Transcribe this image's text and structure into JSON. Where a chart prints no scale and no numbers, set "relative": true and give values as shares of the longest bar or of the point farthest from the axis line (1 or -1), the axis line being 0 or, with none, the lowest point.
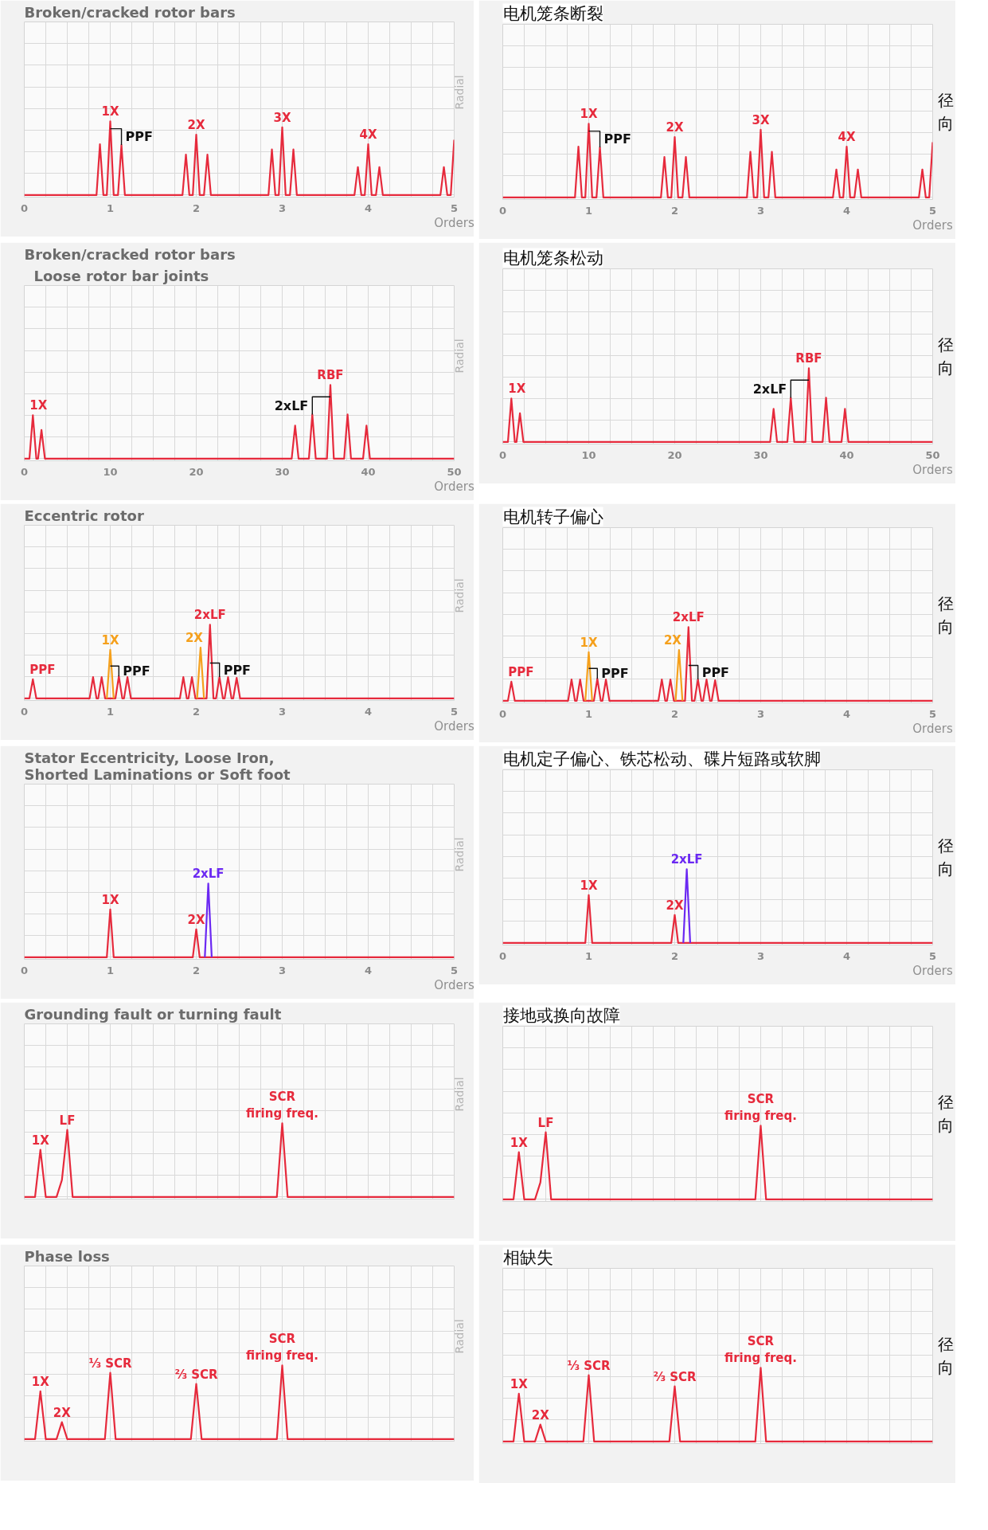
{
  "chart_data": [
    {
      "type": "line",
      "title": "Broken/cracked rotor bars",
      "xlabel": "Orders",
      "ylabel": "Radial",
      "relative": true,
      "grid": true,
      "xlim": [
        0,
        5
      ],
      "xticks": [
        0,
        {
          "value": 0.25,
          "label": null
        },
        {
          "value": 0.5,
          "label": null
        },
        {
          "value": 0.75,
          "label": null
        },
        1,
        {
          "value": 1.25,
          "label": null
        },
        {
          "value": 1.5,
          "label": null
        },
        {
          "value": 1.75,
          "label": null
        },
        2,
        {
          "value": 2.25,
          "label": null
        },
        {
          "value": 2.5,
          "label": null
        },
        {
          "value": 2.75,
          "label": null
        },
        3,
        {
          "value": 3.25,
          "label": null
        },
        {
          "value": 3.5,
          "label": null
        },
        {
          "value": 3.75,
          "label": null
        },
        4,
        {
          "value": 4.25,
          "label": null
        },
        {
          "value": 4.5,
          "label": null
        },
        {
          "value": 4.75,
          "label": null
        },
        5
      ],
      "series": [
        {
          "color": "#e62a3c",
          "x": [
            0,
            0.84,
            0.88,
            0.92,
            0.96,
            1,
            1.04,
            1.09,
            1.13,
            1.17,
            1.84,
            1.88,
            1.92,
            1.96,
            2,
            2.04,
            2.09,
            2.13,
            2.17,
            2.84,
            2.88,
            2.92,
            2.96,
            3,
            3.04,
            3.09,
            3.13,
            3.17,
            3.84,
            3.88,
            3.92,
            3.96,
            4,
            4.04,
            4.09,
            4.13,
            4.17,
            4.84,
            4.88,
            4.92,
            4.96,
            5
          ],
          "values": [
            0,
            0,
            0.69,
            0,
            0,
            1,
            0,
            0,
            0.68,
            0,
            0,
            0.55,
            0,
            0,
            0.82,
            0,
            0,
            0.55,
            0,
            0,
            0.62,
            0,
            0,
            0.92,
            0,
            0,
            0.62,
            0,
            0,
            0.38,
            0,
            0,
            0.69,
            0,
            0,
            0.38,
            0,
            0,
            0.38,
            0,
            0,
            0.75
          ]
        },
        {
          "name": "PPF",
          "color": "#111111",
          "x": [
            1.13,
            1.13,
            1
          ],
          "values": [
            0.68,
            0.9,
            0.9
          ]
        }
      ],
      "annotations": [
        {
          "text": "1X",
          "x": 1,
          "y": 1
        },
        {
          "text": "2X",
          "x": 2,
          "y": 0.82
        },
        {
          "text": "3X",
          "x": 3,
          "y": 0.92
        },
        {
          "text": "4X",
          "x": 4,
          "y": 0.69
        }
      ]
    },
    {
      "type": "line",
      "title": "电机笼条断裂",
      "xlabel": "Orders",
      "ylabel": "径向",
      "relative": true,
      "grid": true,
      "xlim": [
        0,
        5
      ],
      "xticks": [
        0,
        {
          "value": 0.25,
          "label": null
        },
        {
          "value": 0.5,
          "label": null
        },
        {
          "value": 0.75,
          "label": null
        },
        1,
        {
          "value": 1.25,
          "label": null
        },
        {
          "value": 1.5,
          "label": null
        },
        {
          "value": 1.75,
          "label": null
        },
        2,
        {
          "value": 2.25,
          "label": null
        },
        {
          "value": 2.5,
          "label": null
        },
        {
          "value": 2.75,
          "label": null
        },
        3,
        {
          "value": 3.25,
          "label": null
        },
        {
          "value": 3.5,
          "label": null
        },
        {
          "value": 3.75,
          "label": null
        },
        4,
        {
          "value": 4.25,
          "label": null
        },
        {
          "value": 4.5,
          "label": null
        },
        {
          "value": 4.75,
          "label": null
        },
        5
      ],
      "series": [
        {
          "color": "#e62a3c",
          "x": [
            0,
            0.84,
            0.88,
            0.92,
            0.96,
            1,
            1.04,
            1.09,
            1.13,
            1.17,
            1.84,
            1.88,
            1.92,
            1.96,
            2,
            2.04,
            2.09,
            2.13,
            2.17,
            2.84,
            2.88,
            2.92,
            2.96,
            3,
            3.04,
            3.09,
            3.13,
            3.17,
            3.84,
            3.88,
            3.92,
            3.96,
            4,
            4.04,
            4.09,
            4.13,
            4.17,
            4.84,
            4.88,
            4.92,
            4.96,
            5
          ],
          "values": [
            0,
            0,
            0.69,
            0,
            0,
            1,
            0,
            0,
            0.68,
            0,
            0,
            0.55,
            0,
            0,
            0.82,
            0,
            0,
            0.55,
            0,
            0,
            0.62,
            0,
            0,
            0.92,
            0,
            0,
            0.62,
            0,
            0,
            0.38,
            0,
            0,
            0.69,
            0,
            0,
            0.38,
            0,
            0,
            0.38,
            0,
            0,
            0.75
          ]
        },
        {
          "name": "PPF",
          "color": "#111111",
          "x": [
            1.13,
            1.13,
            1
          ],
          "values": [
            0.68,
            0.9,
            0.9
          ]
        }
      ],
      "annotations": [
        {
          "text": "1X",
          "x": 1,
          "y": 1
        },
        {
          "text": "2X",
          "x": 2,
          "y": 0.82
        },
        {
          "text": "3X",
          "x": 3,
          "y": 0.92
        },
        {
          "text": "4X",
          "x": 4,
          "y": 0.69
        }
      ]
    },
    {
      "type": "line",
      "title": "Broken/cracked rotor bars",
      "subtitle": "Loose rotor bar joints",
      "xlabel": "Orders",
      "ylabel": "Radial",
      "relative": true,
      "grid": true,
      "xlim": [
        0,
        50
      ],
      "xticks": [
        0,
        {
          "value": 2.5,
          "label": null
        },
        {
          "value": 5,
          "label": null
        },
        {
          "value": 7.5,
          "label": null
        },
        10,
        {
          "value": 12.5,
          "label": null
        },
        {
          "value": 15,
          "label": null
        },
        {
          "value": 17.5,
          "label": null
        },
        20,
        {
          "value": 22.5,
          "label": null
        },
        {
          "value": 25,
          "label": null
        },
        {
          "value": 27.5,
          "label": null
        },
        30,
        {
          "value": 32.5,
          "label": null
        },
        {
          "value": 35,
          "label": null
        },
        {
          "value": 37.5,
          "label": null
        },
        40,
        {
          "value": 42.5,
          "label": null
        },
        {
          "value": 45,
          "label": null
        },
        {
          "value": 47.5,
          "label": null
        },
        50
      ],
      "series": [
        {
          "color": "#e62a3c",
          "x": [
            0,
            0.6,
            1,
            1.4,
            1.6,
            2,
            2.4,
            31.1,
            31.5,
            31.9,
            33.1,
            33.5,
            33.9,
            35.2,
            35.6,
            36,
            37.2,
            37.6,
            38,
            39.4,
            39.8,
            40.2,
            50
          ],
          "values": [
            0,
            0,
            0.59,
            0,
            0,
            0.39,
            0,
            0,
            0.45,
            0,
            0,
            0.6,
            0,
            0,
            1,
            0,
            0,
            0.6,
            0,
            0,
            0.45,
            0,
            0
          ]
        },
        {
          "name": "2xLF",
          "color": "#111111",
          "x": [
            33.5,
            33.5,
            35.6
          ],
          "values": [
            0.6,
            0.84,
            0.84
          ]
        }
      ],
      "annotations": [
        {
          "text": "1X",
          "x": 1,
          "y": 0.59
        },
        {
          "text": "RBF",
          "x": 35.6,
          "y": 1
        }
      ]
    },
    {
      "type": "line",
      "title": "电机笼条松动",
      "xlabel": "Orders",
      "ylabel": "径向",
      "relative": true,
      "grid": true,
      "xlim": [
        0,
        50
      ],
      "xticks": [
        0,
        {
          "value": 2.5,
          "label": null
        },
        {
          "value": 5,
          "label": null
        },
        {
          "value": 7.5,
          "label": null
        },
        10,
        {
          "value": 12.5,
          "label": null
        },
        {
          "value": 15,
          "label": null
        },
        {
          "value": 17.5,
          "label": null
        },
        20,
        {
          "value": 22.5,
          "label": null
        },
        {
          "value": 25,
          "label": null
        },
        {
          "value": 27.5,
          "label": null
        },
        30,
        {
          "value": 32.5,
          "label": null
        },
        {
          "value": 35,
          "label": null
        },
        {
          "value": 37.5,
          "label": null
        },
        40,
        {
          "value": 42.5,
          "label": null
        },
        {
          "value": 45,
          "label": null
        },
        {
          "value": 47.5,
          "label": null
        },
        50
      ],
      "series": [
        {
          "color": "#e62a3c",
          "x": [
            0,
            0.6,
            1,
            1.4,
            1.6,
            2,
            2.4,
            31.1,
            31.5,
            31.9,
            33.1,
            33.5,
            33.9,
            35.2,
            35.6,
            36,
            37.2,
            37.6,
            38,
            39.4,
            39.8,
            40.2,
            50
          ],
          "values": [
            0,
            0,
            0.59,
            0,
            0,
            0.39,
            0,
            0,
            0.45,
            0,
            0,
            0.6,
            0,
            0,
            1,
            0,
            0,
            0.6,
            0,
            0,
            0.45,
            0,
            0
          ]
        },
        {
          "name": "2xLF",
          "color": "#111111",
          "x": [
            33.5,
            33.5,
            35.6
          ],
          "values": [
            0.6,
            0.84,
            0.84
          ]
        }
      ],
      "annotations": [
        {
          "text": "1X",
          "x": 1,
          "y": 0.59
        },
        {
          "text": "RBF",
          "x": 35.6,
          "y": 1
        }
      ]
    },
    {
      "type": "line",
      "title": "Eccentric rotor",
      "xlabel": "Orders",
      "ylabel": "Radial",
      "relative": true,
      "grid": true,
      "xlim": [
        0,
        5
      ],
      "xticks": [
        0,
        {
          "value": 0.25,
          "label": null
        },
        {
          "value": 0.5,
          "label": null
        },
        {
          "value": 0.75,
          "label": null
        },
        1,
        {
          "value": 1.25,
          "label": null
        },
        {
          "value": 1.5,
          "label": null
        },
        {
          "value": 1.75,
          "label": null
        },
        2,
        {
          "value": 2.25,
          "label": null
        },
        {
          "value": 2.5,
          "label": null
        },
        {
          "value": 2.75,
          "label": null
        },
        3,
        {
          "value": 3.25,
          "label": null
        },
        {
          "value": 3.5,
          "label": null
        },
        {
          "value": 3.75,
          "label": null
        },
        4,
        {
          "value": 4.25,
          "label": null
        },
        {
          "value": 4.5,
          "label": null
        },
        {
          "value": 4.75,
          "label": null
        },
        5
      ],
      "series": [
        {
          "color": "#e62a3c",
          "x": [
            0,
            0.06,
            0.1,
            0.14,
            0.76,
            0.8,
            0.84,
            0.86,
            0.9,
            0.94,
            1.06,
            1.1,
            1.14,
            1.16,
            1.2,
            1.24,
            1.81,
            1.85,
            1.89,
            1.91,
            1.95,
            1.99,
            2.12,
            2.16,
            2.2,
            2.23,
            2.27,
            2.31,
            2.33,
            2.37,
            2.41,
            2.43,
            2.47,
            2.51,
            5
          ],
          "values": [
            0,
            0,
            0.26,
            0,
            0,
            0.29,
            0,
            0,
            0.29,
            0,
            0,
            0.3,
            0,
            0,
            0.29,
            0,
            0,
            0.29,
            0,
            0,
            0.29,
            0,
            0,
            1,
            0,
            0,
            0.29,
            0,
            0,
            0.29,
            0,
            0,
            0.28,
            0,
            0
          ]
        },
        {
          "color": "#f5a01c",
          "x": [
            0.96,
            1,
            1.04
          ],
          "values": [
            0,
            0.66,
            0
          ]
        },
        {
          "color": "#f5a01c",
          "x": [
            2.01,
            2.05,
            2.09
          ],
          "values": [
            0,
            0.69,
            0
          ]
        },
        {
          "name": "PPF",
          "color": "#111111",
          "x": [
            1.1,
            1.1,
            1
          ],
          "values": [
            0.3,
            0.44,
            0.44
          ]
        },
        {
          "name": "PPF",
          "color": "#111111",
          "x": [
            2.27,
            2.27,
            2.16
          ],
          "values": [
            0.29,
            0.48,
            0.48
          ]
        }
      ],
      "annotations": [
        {
          "text": "PPF",
          "x": 0.1,
          "y": 0.26
        },
        {
          "text": "1X",
          "x": 1,
          "y": 0.66
        },
        {
          "text": "2X",
          "x": 2.05,
          "y": 0.69
        },
        {
          "text": "2xLF",
          "x": 2.16,
          "y": 1
        }
      ]
    },
    {
      "type": "line",
      "title": "电机转子偏心",
      "xlabel": "Orders",
      "ylabel": "径向",
      "relative": true,
      "grid": true,
      "xlim": [
        0,
        5
      ],
      "xticks": [
        0,
        {
          "value": 0.25,
          "label": null
        },
        {
          "value": 0.5,
          "label": null
        },
        {
          "value": 0.75,
          "label": null
        },
        1,
        {
          "value": 1.25,
          "label": null
        },
        {
          "value": 1.5,
          "label": null
        },
        {
          "value": 1.75,
          "label": null
        },
        2,
        {
          "value": 2.25,
          "label": null
        },
        {
          "value": 2.5,
          "label": null
        },
        {
          "value": 2.75,
          "label": null
        },
        3,
        {
          "value": 3.25,
          "label": null
        },
        {
          "value": 3.5,
          "label": null
        },
        {
          "value": 3.75,
          "label": null
        },
        4,
        {
          "value": 4.25,
          "label": null
        },
        {
          "value": 4.5,
          "label": null
        },
        {
          "value": 4.75,
          "label": null
        },
        5
      ],
      "series": [
        {
          "color": "#e62a3c",
          "x": [
            0,
            0.06,
            0.1,
            0.14,
            0.76,
            0.8,
            0.84,
            0.86,
            0.9,
            0.94,
            1.06,
            1.1,
            1.14,
            1.16,
            1.2,
            1.24,
            1.81,
            1.85,
            1.89,
            1.91,
            1.95,
            1.99,
            2.12,
            2.16,
            2.2,
            2.23,
            2.27,
            2.31,
            2.33,
            2.37,
            2.41,
            2.43,
            2.47,
            2.51,
            5
          ],
          "values": [
            0,
            0,
            0.26,
            0,
            0,
            0.29,
            0,
            0,
            0.29,
            0,
            0,
            0.3,
            0,
            0,
            0.29,
            0,
            0,
            0.29,
            0,
            0,
            0.29,
            0,
            0,
            1,
            0,
            0,
            0.29,
            0,
            0,
            0.29,
            0,
            0,
            0.28,
            0,
            0
          ]
        },
        {
          "color": "#f5a01c",
          "x": [
            0.96,
            1,
            1.04
          ],
          "values": [
            0,
            0.66,
            0
          ]
        },
        {
          "color": "#f5a01c",
          "x": [
            2.01,
            2.05,
            2.09
          ],
          "values": [
            0,
            0.69,
            0
          ]
        },
        {
          "name": "PPF",
          "color": "#111111",
          "x": [
            1.1,
            1.1,
            1
          ],
          "values": [
            0.3,
            0.44,
            0.44
          ]
        },
        {
          "name": "PPF",
          "color": "#111111",
          "x": [
            2.27,
            2.27,
            2.16
          ],
          "values": [
            0.29,
            0.48,
            0.48
          ]
        }
      ],
      "annotations": [
        {
          "text": "PPF",
          "x": 0.1,
          "y": 0.26
        },
        {
          "text": "1X",
          "x": 1,
          "y": 0.66
        },
        {
          "text": "2X",
          "x": 2.05,
          "y": 0.69
        },
        {
          "text": "2xLF",
          "x": 2.16,
          "y": 1
        }
      ]
    },
    {
      "type": "line",
      "title": "Stator Eccentricity, Loose Iron, Shorted Laminations or Soft foot",
      "xlabel": "Orders",
      "ylabel": "Radial",
      "relative": true,
      "grid": true,
      "xlim": [
        0,
        5
      ],
      "xticks": [
        0,
        {
          "value": 0.25,
          "label": null
        },
        {
          "value": 0.5,
          "label": null
        },
        {
          "value": 0.75,
          "label": null
        },
        1,
        {
          "value": 1.25,
          "label": null
        },
        {
          "value": 1.5,
          "label": null
        },
        {
          "value": 1.75,
          "label": null
        },
        2,
        {
          "value": 2.25,
          "label": null
        },
        {
          "value": 2.5,
          "label": null
        },
        {
          "value": 2.75,
          "label": null
        },
        3,
        {
          "value": 3.25,
          "label": null
        },
        {
          "value": 3.5,
          "label": null
        },
        {
          "value": 3.75,
          "label": null
        },
        4,
        {
          "value": 4.25,
          "label": null
        },
        {
          "value": 4.5,
          "label": null
        },
        {
          "value": 4.75,
          "label": null
        },
        5
      ],
      "series": [
        {
          "color": "#e62a3c",
          "x": [
            0,
            0.96,
            1,
            1.04,
            1.96,
            2,
            2.04,
            5
          ],
          "values": [
            0,
            0,
            0.65,
            0,
            0,
            0.38,
            0,
            0
          ]
        },
        {
          "color": "#6b29f2",
          "x": [
            2.1,
            2.14,
            2.18
          ],
          "values": [
            0,
            1,
            0
          ]
        }
      ],
      "annotations": [
        {
          "text": "1X",
          "x": 1,
          "y": 0.65
        },
        {
          "text": "2X",
          "x": 2,
          "y": 0.38
        },
        {
          "text": "2xLF",
          "x": 2.14,
          "y": 1
        }
      ]
    },
    {
      "type": "line",
      "title": "电机定子偏心、铁芯松动、碟片短路或软脚",
      "xlabel": "Orders",
      "ylabel": "径向",
      "relative": true,
      "grid": true,
      "xlim": [
        0,
        5
      ],
      "xticks": [
        0,
        {
          "value": 0.25,
          "label": null
        },
        {
          "value": 0.5,
          "label": null
        },
        {
          "value": 0.75,
          "label": null
        },
        1,
        {
          "value": 1.25,
          "label": null
        },
        {
          "value": 1.5,
          "label": null
        },
        {
          "value": 1.75,
          "label": null
        },
        2,
        {
          "value": 2.25,
          "label": null
        },
        {
          "value": 2.5,
          "label": null
        },
        {
          "value": 2.75,
          "label": null
        },
        3,
        {
          "value": 3.25,
          "label": null
        },
        {
          "value": 3.5,
          "label": null
        },
        {
          "value": 3.75,
          "label": null
        },
        4,
        {
          "value": 4.25,
          "label": null
        },
        {
          "value": 4.5,
          "label": null
        },
        {
          "value": 4.75,
          "label": null
        },
        5
      ],
      "series": [
        {
          "color": "#e62a3c",
          "x": [
            0,
            0.96,
            1,
            1.04,
            1.96,
            2,
            2.04,
            5
          ],
          "values": [
            0,
            0,
            0.65,
            0,
            0,
            0.38,
            0,
            0
          ]
        },
        {
          "color": "#6b29f2",
          "x": [
            2.1,
            2.14,
            2.18
          ],
          "values": [
            0,
            1,
            0
          ]
        }
      ],
      "annotations": [
        {
          "text": "1X",
          "x": 1,
          "y": 0.65
        },
        {
          "text": "2X",
          "x": 2,
          "y": 0.38
        },
        {
          "text": "2xLF",
          "x": 2.14,
          "y": 1
        }
      ]
    },
    {
      "type": "line",
      "title": "Grounding fault or turning fault",
      "ylabel": "Radial",
      "relative": true,
      "grid": true,
      "categories": [
        null,
        null,
        null,
        null,
        null,
        null,
        null,
        null,
        null,
        null,
        null,
        null,
        null,
        null,
        null,
        null,
        null,
        null,
        null,
        null,
        null,
        null,
        null,
        null,
        null,
        null,
        null,
        null,
        null,
        null,
        null,
        null,
        null,
        null,
        null,
        null,
        null,
        null,
        null,
        null,
        null,
        null,
        null,
        null,
        null,
        null,
        null,
        null,
        null,
        null,
        null,
        null,
        null,
        null,
        null,
        null,
        null,
        null,
        null,
        null,
        null,
        null,
        null,
        null,
        null,
        null,
        null,
        null,
        null,
        null,
        null,
        null,
        null,
        null,
        null,
        null,
        null,
        null,
        null,
        null,
        null
      ],
      "series": [
        {
          "color": "#e62a3c",
          "values": [
            0,
            0,
            0,
            0.64,
            0,
            0,
            0,
            0.23,
            0.91,
            0,
            0,
            0,
            0,
            0,
            0,
            0,
            0,
            0,
            0,
            0,
            0,
            0,
            0,
            0,
            0,
            0,
            0,
            0,
            0,
            0,
            0,
            0,
            0,
            0,
            0,
            0,
            0,
            0,
            0,
            0,
            0,
            0,
            0,
            0,
            0,
            0,
            0,
            0,
            1,
            0,
            0,
            0,
            0,
            0,
            0,
            0,
            0,
            0,
            0,
            0,
            0,
            0,
            0,
            0,
            0,
            0,
            0,
            0,
            0,
            0,
            0,
            0,
            0,
            0,
            0,
            0,
            0,
            0,
            0,
            0,
            0
          ]
        }
      ],
      "annotations": [
        {
          "text": "1X",
          "y": 0.64
        },
        {
          "text": "LF",
          "y": 0.91
        },
        {
          "text": "SCR firing freq.",
          "y": 1
        }
      ]
    },
    {
      "type": "line",
      "title": "接地或换向故障",
      "ylabel": "径向",
      "relative": true,
      "grid": true,
      "categories": [
        null,
        null,
        null,
        null,
        null,
        null,
        null,
        null,
        null,
        null,
        null,
        null,
        null,
        null,
        null,
        null,
        null,
        null,
        null,
        null,
        null,
        null,
        null,
        null,
        null,
        null,
        null,
        null,
        null,
        null,
        null,
        null,
        null,
        null,
        null,
        null,
        null,
        null,
        null,
        null,
        null,
        null,
        null,
        null,
        null,
        null,
        null,
        null,
        null,
        null,
        null,
        null,
        null,
        null,
        null,
        null,
        null,
        null,
        null,
        null,
        null,
        null,
        null,
        null,
        null,
        null,
        null,
        null,
        null,
        null,
        null,
        null,
        null,
        null,
        null,
        null,
        null,
        null,
        null,
        null,
        null
      ],
      "series": [
        {
          "color": "#e62a3c",
          "values": [
            0,
            0,
            0,
            0.64,
            0,
            0,
            0,
            0.23,
            0.91,
            0,
            0,
            0,
            0,
            0,
            0,
            0,
            0,
            0,
            0,
            0,
            0,
            0,
            0,
            0,
            0,
            0,
            0,
            0,
            0,
            0,
            0,
            0,
            0,
            0,
            0,
            0,
            0,
            0,
            0,
            0,
            0,
            0,
            0,
            0,
            0,
            0,
            0,
            0,
            1,
            0,
            0,
            0,
            0,
            0,
            0,
            0,
            0,
            0,
            0,
            0,
            0,
            0,
            0,
            0,
            0,
            0,
            0,
            0,
            0,
            0,
            0,
            0,
            0,
            0,
            0,
            0,
            0,
            0,
            0,
            0,
            0
          ]
        }
      ],
      "annotations": [
        {
          "text": "1X",
          "y": 0.64
        },
        {
          "text": "LF",
          "y": 0.91
        },
        {
          "text": "SCR firing freq.",
          "y": 1
        }
      ]
    },
    {
      "type": "line",
      "title": "Phase loss",
      "ylabel": "Radial",
      "relative": true,
      "grid": true,
      "categories": [
        null,
        null,
        null,
        null,
        null,
        null,
        null,
        null,
        null,
        null,
        null,
        null,
        null,
        null,
        null,
        null,
        null,
        null,
        null,
        null,
        null,
        null,
        null,
        null,
        null,
        null,
        null,
        null,
        null,
        null,
        null,
        null,
        null,
        null,
        null,
        null,
        null,
        null,
        null,
        null,
        null,
        null,
        null,
        null,
        null,
        null,
        null,
        null,
        null,
        null,
        null,
        null,
        null,
        null,
        null,
        null,
        null,
        null,
        null,
        null,
        null,
        null,
        null,
        null,
        null,
        null,
        null,
        null,
        null,
        null,
        null,
        null,
        null,
        null,
        null,
        null,
        null,
        null,
        null,
        null,
        null
      ],
      "series": [
        {
          "color": "#e62a3c",
          "values": [
            0,
            0,
            0,
            0.65,
            0,
            0,
            0,
            0.23,
            0,
            0,
            0,
            0,
            0,
            0,
            0,
            0,
            0.9,
            0,
            0,
            0,
            0,
            0,
            0,
            0,
            0,
            0,
            0,
            0,
            0,
            0,
            0,
            0,
            0.75,
            0,
            0,
            0,
            0,
            0,
            0,
            0,
            0,
            0,
            0,
            0,
            0,
            0,
            0,
            0,
            1,
            0,
            0,
            0,
            0,
            0,
            0,
            0,
            0,
            0,
            0,
            0,
            0,
            0,
            0,
            0,
            0,
            0,
            0,
            0,
            0,
            0,
            0,
            0,
            0,
            0,
            0,
            0,
            0,
            0,
            0,
            0,
            0
          ]
        }
      ],
      "annotations": [
        {
          "text": "1X",
          "y": 0.65
        },
        {
          "text": "2X",
          "y": 0.23
        },
        {
          "text": "⅓ SCR",
          "y": 0.9
        },
        {
          "text": "⅔ SCR",
          "y": 0.75
        },
        {
          "text": "SCR firing freq.",
          "y": 1
        }
      ]
    },
    {
      "type": "line",
      "title": "相缺失",
      "ylabel": "径向",
      "relative": true,
      "grid": true,
      "categories": [
        null,
        null,
        null,
        null,
        null,
        null,
        null,
        null,
        null,
        null,
        null,
        null,
        null,
        null,
        null,
        null,
        null,
        null,
        null,
        null,
        null,
        null,
        null,
        null,
        null,
        null,
        null,
        null,
        null,
        null,
        null,
        null,
        null,
        null,
        null,
        null,
        null,
        null,
        null,
        null,
        null,
        null,
        null,
        null,
        null,
        null,
        null,
        null,
        null,
        null,
        null,
        null,
        null,
        null,
        null,
        null,
        null,
        null,
        null,
        null,
        null,
        null,
        null,
        null,
        null,
        null,
        null,
        null,
        null,
        null,
        null,
        null,
        null,
        null,
        null,
        null,
        null,
        null,
        null,
        null,
        null
      ],
      "series": [
        {
          "color": "#e62a3c",
          "values": [
            0,
            0,
            0,
            0.65,
            0,
            0,
            0,
            0.23,
            0,
            0,
            0,
            0,
            0,
            0,
            0,
            0,
            0.9,
            0,
            0,
            0,
            0,
            0,
            0,
            0,
            0,
            0,
            0,
            0,
            0,
            0,
            0,
            0,
            0.75,
            0,
            0,
            0,
            0,
            0,
            0,
            0,
            0,
            0,
            0,
            0,
            0,
            0,
            0,
            0,
            1,
            0,
            0,
            0,
            0,
            0,
            0,
            0,
            0,
            0,
            0,
            0,
            0,
            0,
            0,
            0,
            0,
            0,
            0,
            0,
            0,
            0,
            0,
            0,
            0,
            0,
            0,
            0,
            0,
            0,
            0,
            0,
            0
          ]
        }
      ],
      "annotations": [
        {
          "text": "1X",
          "y": 0.65
        },
        {
          "text": "2X",
          "y": 0.23
        },
        {
          "text": "⅓ SCR",
          "y": 0.9
        },
        {
          "text": "⅔ SCR",
          "y": 0.75
        },
        {
          "text": "SCR firing freq.",
          "y": 1
        }
      ]
    }
  ]
}
